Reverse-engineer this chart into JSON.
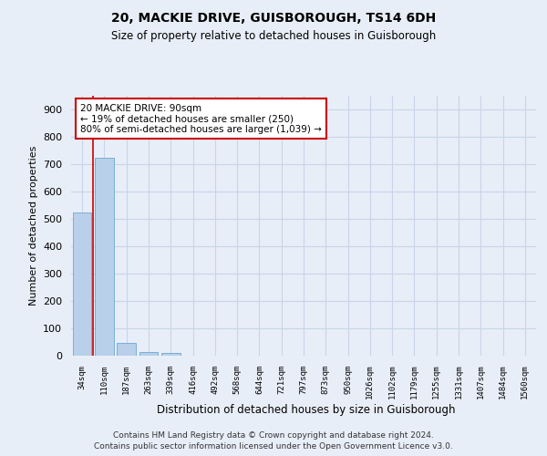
{
  "title1": "20, MACKIE DRIVE, GUISBOROUGH, TS14 6DH",
  "title2": "Size of property relative to detached houses in Guisborough",
  "xlabel": "Distribution of detached houses by size in Guisborough",
  "ylabel": "Number of detached properties",
  "categories": [
    "34sqm",
    "110sqm",
    "187sqm",
    "263sqm",
    "339sqm",
    "416sqm",
    "492sqm",
    "568sqm",
    "644sqm",
    "721sqm",
    "797sqm",
    "873sqm",
    "950sqm",
    "1026sqm",
    "1102sqm",
    "1179sqm",
    "1255sqm",
    "1331sqm",
    "1407sqm",
    "1484sqm",
    "1560sqm"
  ],
  "values": [
    525,
    725,
    47,
    12,
    10,
    0,
    0,
    0,
    0,
    0,
    0,
    0,
    0,
    0,
    0,
    0,
    0,
    0,
    0,
    0,
    0
  ],
  "bar_color": "#b8d0ea",
  "bar_edge_color": "#7aaed6",
  "red_line_x": 0.5,
  "annotation_text": "20 MACKIE DRIVE: 90sqm\n← 19% of detached houses are smaller (250)\n80% of semi-detached houses are larger (1,039) →",
  "annotation_box_color": "white",
  "annotation_edge_color": "#cc0000",
  "red_line_color": "#cc0000",
  "ylim": [
    0,
    950
  ],
  "yticks": [
    0,
    100,
    200,
    300,
    400,
    500,
    600,
    700,
    800,
    900
  ],
  "footer1": "Contains HM Land Registry data © Crown copyright and database right 2024.",
  "footer2": "Contains public sector information licensed under the Open Government Licence v3.0.",
  "background_color": "#e8eef8",
  "grid_color": "#c8d4e8"
}
